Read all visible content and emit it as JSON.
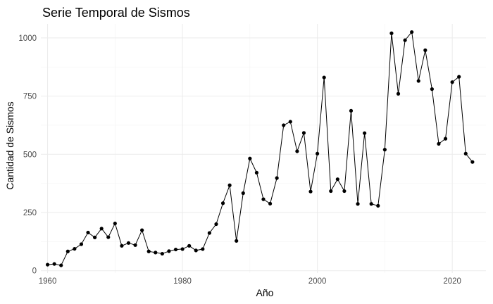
{
  "chart_data": {
    "type": "line",
    "title": "Serie Temporal de Sismos",
    "xlabel": "Año",
    "ylabel": "Cantidad de Sismos",
    "xlim": [
      1959,
      2025
    ],
    "ylim": [
      -10,
      1060
    ],
    "x_ticks": [
      1960,
      1980,
      2000,
      2020
    ],
    "x_tick_labels": [
      "1960",
      "1980",
      "2000",
      "2020"
    ],
    "y_ticks": [
      0,
      250,
      500,
      750,
      1000
    ],
    "y_tick_labels": [
      "0",
      "250",
      "500",
      "750",
      "1000"
    ],
    "grid": true,
    "legend": "none",
    "line_color": "#000000",
    "point_color": "#000000",
    "series": [
      {
        "x": [
          1960,
          1961,
          1962,
          1963,
          1964,
          1965,
          1966,
          1967,
          1968,
          1969,
          1970,
          1971,
          1972,
          1973,
          1974,
          1975,
          1976,
          1977,
          1978,
          1979,
          1980,
          1981,
          1982,
          1983,
          1984,
          1985,
          1986,
          1987,
          1988,
          1989,
          1990,
          1991,
          1992,
          1993,
          1994,
          1995,
          1996,
          1997,
          1998,
          1999,
          2000,
          2001,
          2002,
          2003,
          2004,
          2005,
          2006,
          2007,
          2008,
          2009,
          2010,
          2011,
          2012,
          2013,
          2014,
          2015,
          2016,
          2017,
          2018,
          2019,
          2020,
          2021,
          2022,
          2023
        ],
        "values": [
          26,
          29,
          23,
          83,
          94,
          114,
          164,
          143,
          181,
          144,
          203,
          107,
          119,
          110,
          174,
          83,
          78,
          73,
          84,
          91,
          93,
          107,
          87,
          93,
          162,
          200,
          290,
          367,
          128,
          333,
          482,
          421,
          307,
          288,
          398,
          625,
          640,
          513,
          592,
          340,
          503,
          830,
          342,
          393,
          342,
          687,
          287,
          591,
          287,
          279,
          520,
          1020,
          760,
          990,
          1025,
          815,
          947,
          780,
          545,
          567,
          810,
          833,
          503,
          467
        ]
      }
    ]
  }
}
